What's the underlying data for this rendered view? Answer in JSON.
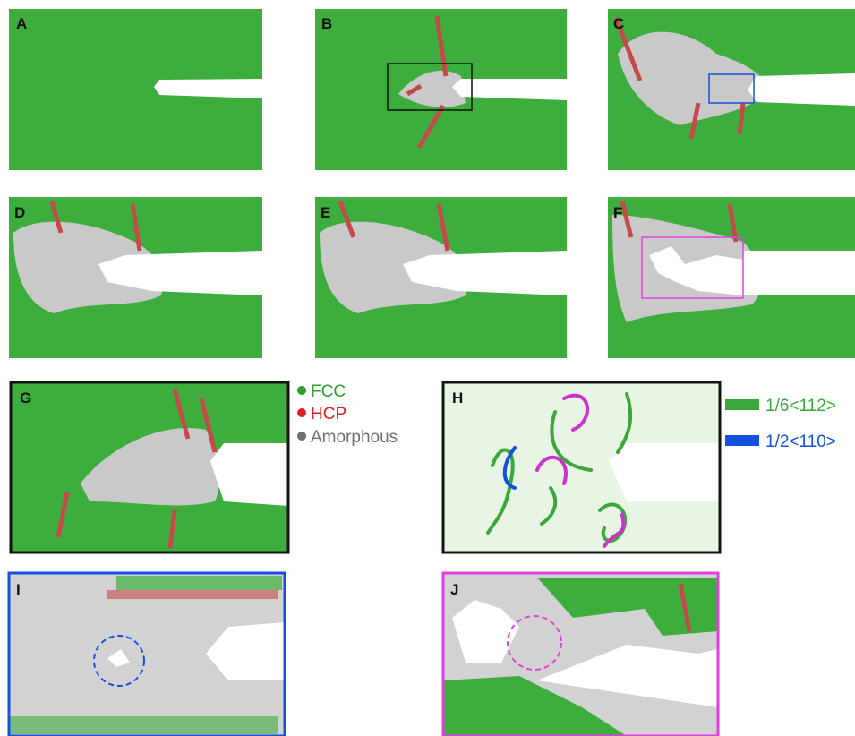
{
  "panels": [
    {
      "label": "A"
    },
    {
      "label": "B"
    },
    {
      "label": "C"
    },
    {
      "label": "D"
    },
    {
      "label": "E"
    },
    {
      "label": "F"
    },
    {
      "label": "G"
    },
    {
      "label": "H"
    },
    {
      "label": "I"
    },
    {
      "label": "J"
    }
  ],
  "phase_legend": [
    {
      "label": "FCC",
      "color": "#2ca02c"
    },
    {
      "label": "HCP",
      "color": "#e02020"
    },
    {
      "label": "Amorphous",
      "color": "#707070"
    }
  ],
  "dislocation_legend": [
    {
      "label": "1/6<112>",
      "color": "#3aa83a"
    },
    {
      "label": "1/2<110>",
      "color": "#1450e0"
    }
  ]
}
